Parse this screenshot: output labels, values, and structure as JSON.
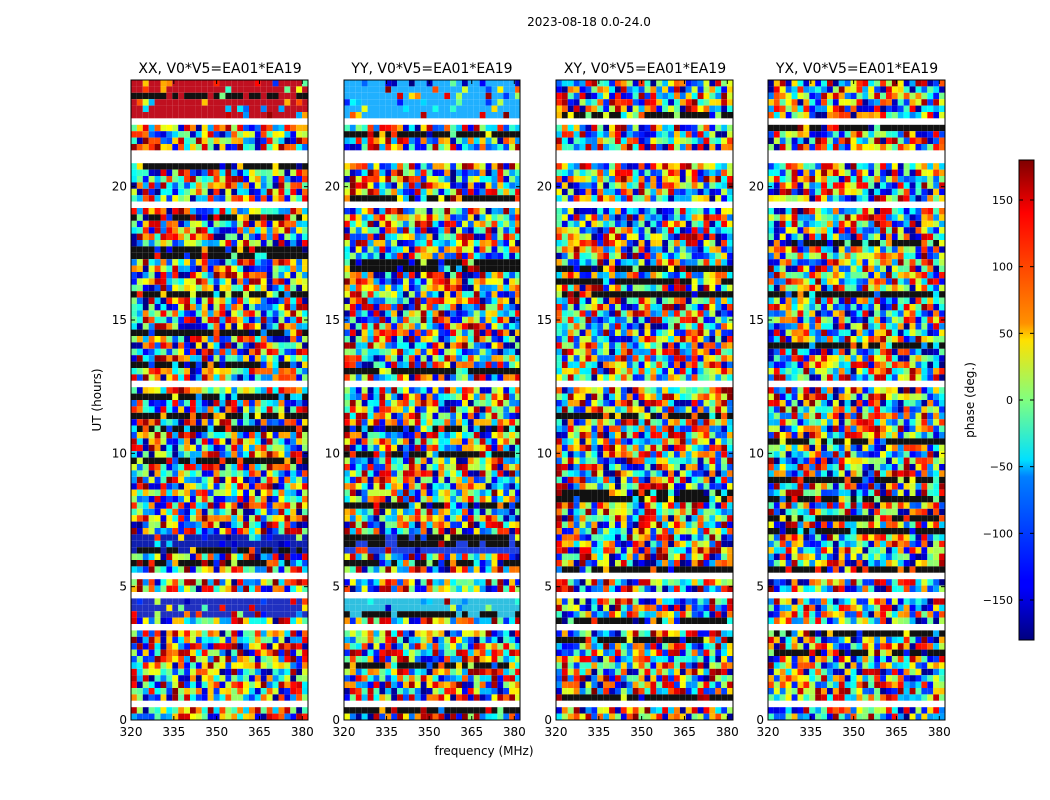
{
  "figure": {
    "suptitle": "2023-08-18 0.0-24.0"
  },
  "chart_data": [
    {
      "type": "heatmap",
      "title": "XX, V0*V5=EA01*EA19",
      "xlabel": "",
      "ylabel": "UT (hours)",
      "xlim": [
        320,
        382
      ],
      "ylim": [
        0,
        24
      ],
      "x_ticks": [
        "320",
        "335",
        "350",
        "365",
        "380"
      ],
      "y_ticks": [
        "0",
        "5",
        "10",
        "15",
        "20"
      ],
      "dominant_bands": [
        {
          "from": 22.4,
          "to": 23.9,
          "color": "#c01020"
        },
        {
          "from": 6.2,
          "to": 7.0,
          "color": "#1020b0"
        },
        {
          "from": 3.9,
          "to": 4.6,
          "color": "#2030c0"
        }
      ]
    },
    {
      "type": "heatmap",
      "title": "YY, V0*V5=EA01*EA19",
      "xlabel": "frequency (MHz)",
      "ylabel": "",
      "xlim": [
        320,
        382
      ],
      "ylim": [
        0,
        24
      ],
      "x_ticks": [
        "320",
        "335",
        "350",
        "365",
        "380"
      ],
      "y_ticks": [
        "0",
        "5",
        "10",
        "15",
        "20"
      ],
      "dominant_bands": [
        {
          "from": 22.4,
          "to": 23.9,
          "color": "#20b0ff"
        },
        {
          "from": 6.2,
          "to": 7.0,
          "color": "#2040e0"
        },
        {
          "from": 3.9,
          "to": 4.6,
          "color": "#30c0e0"
        }
      ]
    },
    {
      "type": "heatmap",
      "title": "XY, V0*V5=EA01*EA19",
      "xlabel": "",
      "ylabel": "",
      "xlim": [
        320,
        382
      ],
      "ylim": [
        0,
        24
      ],
      "x_ticks": [
        "320",
        "335",
        "350",
        "365",
        "380"
      ],
      "y_ticks": [
        "0",
        "5",
        "10",
        "15",
        "20"
      ],
      "dominant_bands": []
    },
    {
      "type": "heatmap",
      "title": "YX, V0*V5=EA01*EA19",
      "xlabel": "",
      "ylabel": "",
      "xlim": [
        320,
        382
      ],
      "ylim": [
        0,
        24
      ],
      "x_ticks": [
        "320",
        "335",
        "350",
        "365",
        "380"
      ],
      "y_ticks": [
        "0",
        "5",
        "10",
        "15",
        "20"
      ],
      "dominant_bands": []
    }
  ],
  "colorbar": {
    "label": "phase (deg.)",
    "range": [
      -180,
      180
    ],
    "ticks": [
      "150",
      "100",
      "50",
      "0",
      "−50",
      "−100",
      "−150"
    ],
    "tick_values": [
      150,
      100,
      50,
      0,
      -50,
      -100,
      -150
    ]
  },
  "flagged_gaps_hours": [
    [
      0.5,
      0.65
    ],
    [
      1.35,
      1.55
    ],
    [
      3.45,
      3.6
    ],
    [
      4.6,
      4.85
    ],
    [
      5.3,
      5.45
    ],
    [
      10.45,
      10.55
    ],
    [
      12.5,
      12.65
    ],
    [
      15.05,
      15.2
    ],
    [
      17.0,
      17.1
    ],
    [
      19.3,
      19.4
    ],
    [
      20.95,
      21.35
    ],
    [
      21.75,
      21.85
    ],
    [
      22.35,
      22.45
    ]
  ]
}
